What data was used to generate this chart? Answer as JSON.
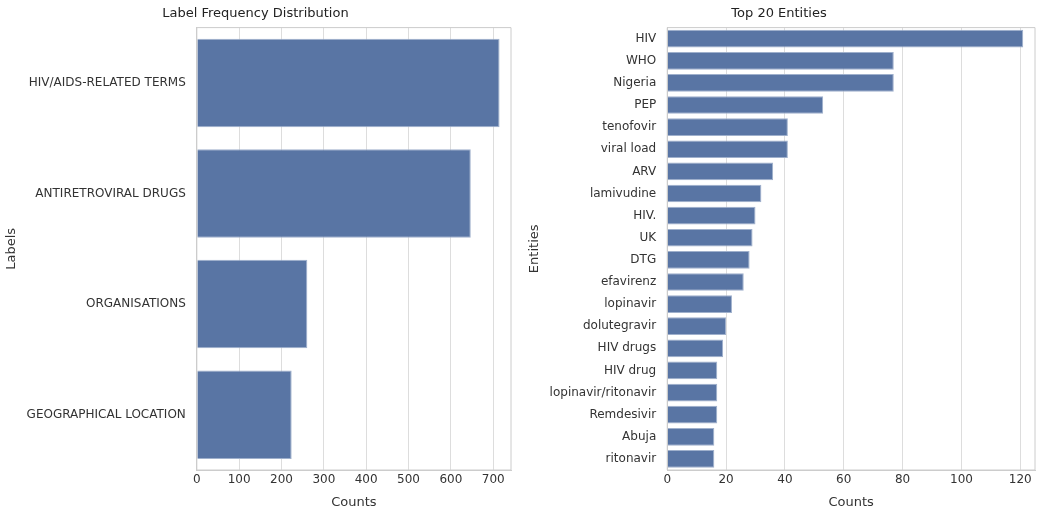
{
  "chart_data": [
    {
      "type": "bar",
      "orientation": "horizontal",
      "title": "Label Frequency Distribution",
      "xlabel": "Counts",
      "ylabel": "Labels",
      "categories": [
        "HIV/AIDS-RELATED TERMS",
        "ANTIRETROVIRAL DRUGS",
        "ORGANISATIONS",
        "GEOGRAPHICAL LOCATION"
      ],
      "values": [
        715,
        647,
        261,
        224
      ],
      "color": "#5975a4",
      "xlim": [
        0,
        742
      ],
      "xticks": [
        0,
        100,
        200,
        300,
        400,
        500,
        600,
        700
      ],
      "grid": "x"
    },
    {
      "type": "bar",
      "orientation": "horizontal",
      "title": "Top 20 Entities",
      "xlabel": "Counts",
      "ylabel": "Entities",
      "categories": [
        "HIV",
        "WHO",
        "Nigeria",
        "PEP",
        "tenofovir",
        "viral load",
        "ARV",
        "lamivudine",
        "HIV.",
        "UK",
        "DTG",
        "efavirenz",
        "lopinavir",
        "dolutegravir",
        "HIV drugs",
        "HIV drug",
        "lopinavir/ritonavir",
        "Remdesivir",
        "Abuja",
        "ritonavir"
      ],
      "values": [
        121,
        77,
        77,
        53,
        41,
        41,
        36,
        32,
        30,
        29,
        28,
        26,
        22,
        20,
        19,
        17,
        17,
        17,
        16,
        16
      ],
      "color": "#5975a4",
      "xlim": [
        0,
        125
      ],
      "xticks": [
        0,
        20,
        40,
        60,
        80,
        100,
        120
      ],
      "grid": "x"
    }
  ]
}
